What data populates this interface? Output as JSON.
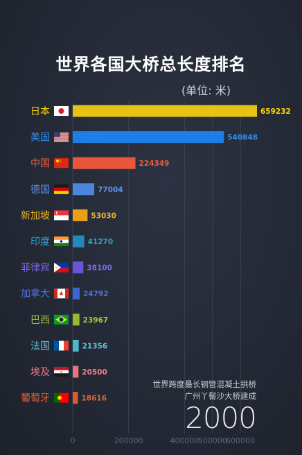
{
  "title": "世界各国大桥总长度排名",
  "unit": "(单位: 米)",
  "annotation": [
    "世界跨度最长钢管混凝土拱桥",
    "广州丫髻沙大桥建成"
  ],
  "year": "2000",
  "chart_data": {
    "type": "bar",
    "orientation": "horizontal",
    "title": "世界各国大桥总长度排名",
    "unit_label": "(单位: 米)",
    "categories": [
      "日本",
      "美国",
      "中国",
      "德国",
      "新加坡",
      "印度",
      "菲律宾",
      "加拿大",
      "巴西",
      "法国",
      "埃及",
      "葡萄牙"
    ],
    "values": [
      659232,
      540848,
      224349,
      77004,
      53030,
      41270,
      38100,
      24792,
      23967,
      21356,
      20500,
      18616
    ],
    "value_labels": [
      "659232",
      "540848",
      "224349",
      "77004",
      "53030",
      "41270",
      "38100",
      "24792",
      "23967",
      "21356",
      "20500",
      "18616"
    ],
    "colors": [
      "#e6c413",
      "#1b7fe6",
      "#ea5639",
      "#4b86e0",
      "#eaa116",
      "#2389bd",
      "#6b54d8",
      "#3c64d6",
      "#9ab735",
      "#4fb6cc",
      "#ea7280",
      "#dc5a30"
    ],
    "label_colors": [
      "#ffd700",
      "#2f8fef",
      "#ef5b3d",
      "#5b91ea",
      "#f2b320",
      "#2aa5d6",
      "#7d67e6",
      "#4c72e0",
      "#a8c43e",
      "#5cc8d8",
      "#f07b86",
      "#e46335"
    ],
    "flags": [
      "japan-flag",
      "usa-flag",
      "china-flag",
      "germany-flag",
      "singapore-flag",
      "india-flag",
      "philippines-flag",
      "canada-flag",
      "brazil-flag",
      "france-flag",
      "egypt-flag",
      "portugal-flag"
    ],
    "x_ticks": [
      0,
      200000,
      400000,
      500000,
      600000
    ],
    "x_tick_labels": [
      "0",
      "200000",
      "400000",
      "500000",
      "600000"
    ],
    "xlim": [
      0,
      659232
    ],
    "grid": true
  }
}
